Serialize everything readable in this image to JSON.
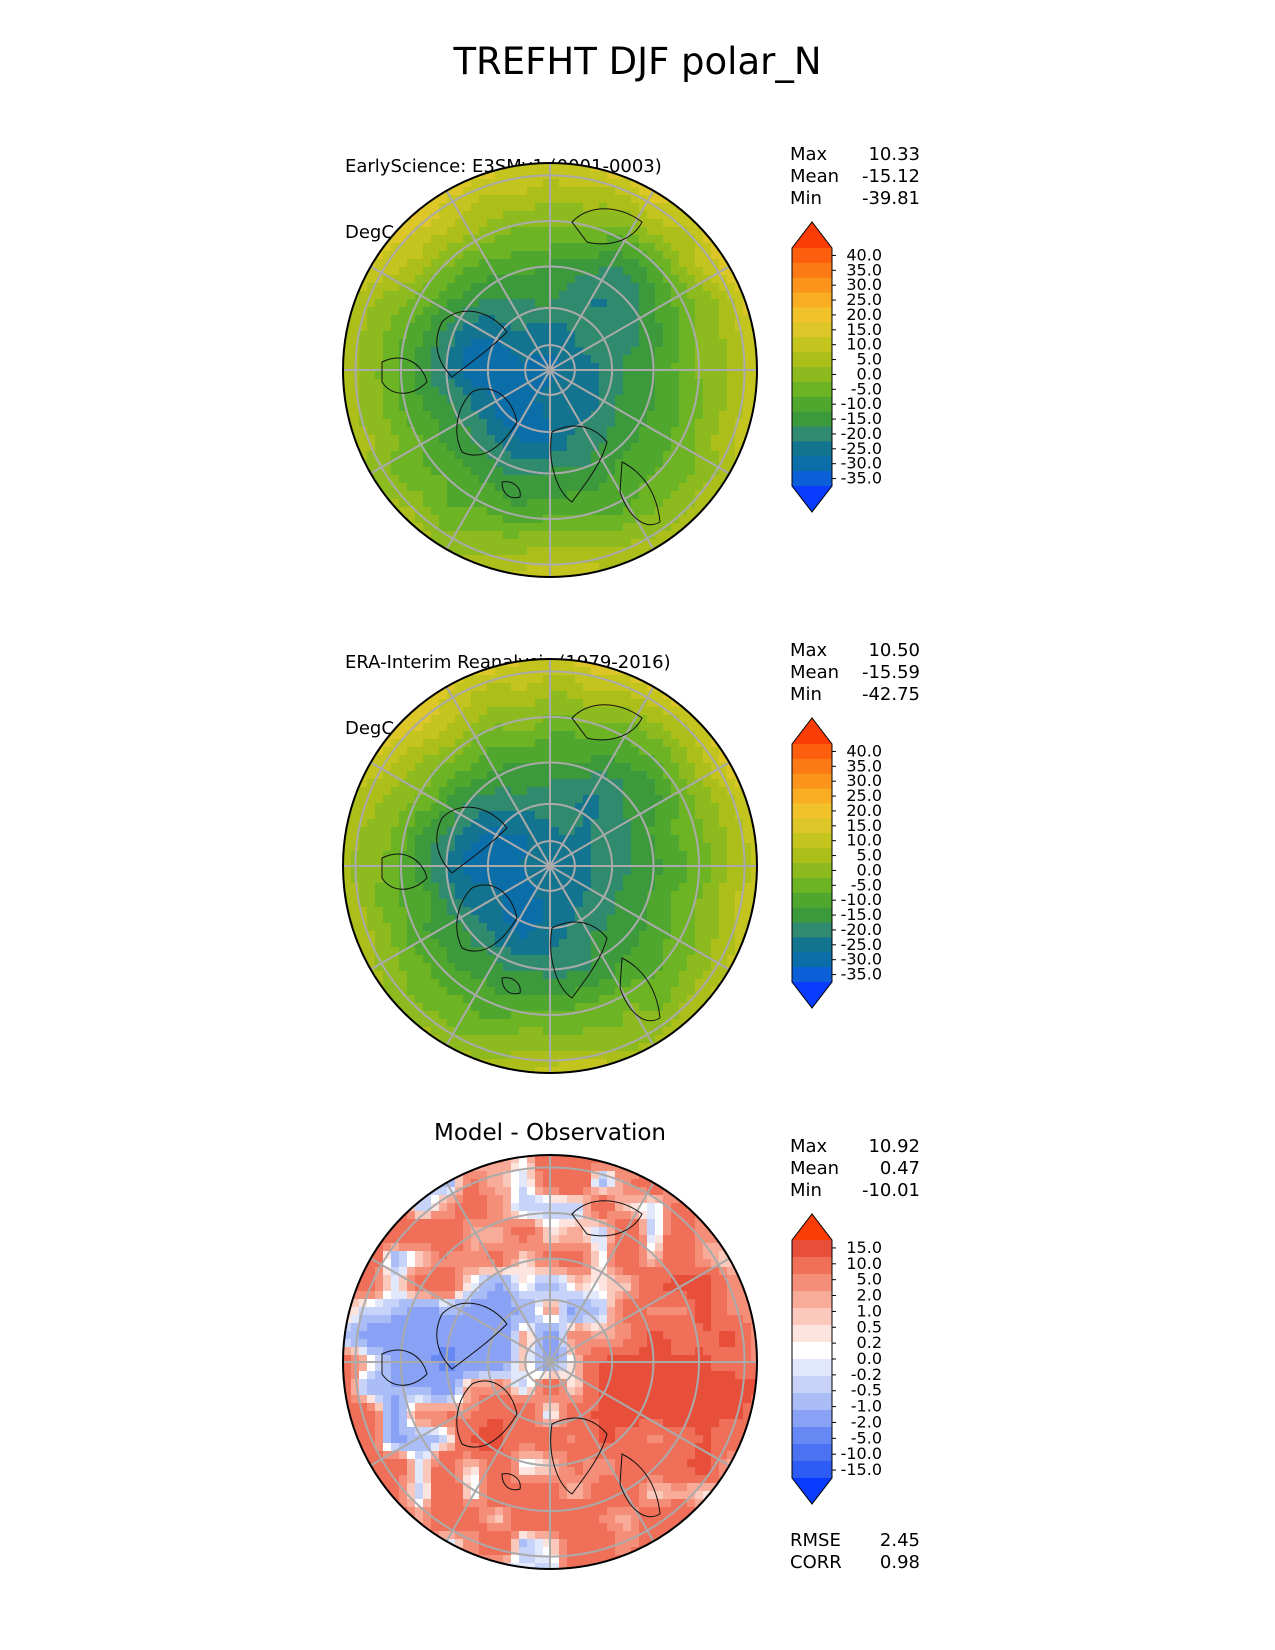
{
  "title": "TREFHT DJF polar_N",
  "palettes": {
    "temperature": [
      "#0a3cff",
      "#0b5fd8",
      "#0b6ea8",
      "#12748f",
      "#2f8a6e",
      "#3c9a3c",
      "#4fa82d",
      "#6db424",
      "#8dbb1f",
      "#abbe1a",
      "#c4c41e",
      "#dcc628",
      "#f2c22a",
      "#f9ad22",
      "#fb941b",
      "#fc7a14",
      "#fd5e0d",
      "#fc3c05"
    ],
    "difference": [
      "#0a3cff",
      "#2d5cf5",
      "#4a72f2",
      "#6688f3",
      "#8aa2f5",
      "#aabdf7",
      "#c7d3f9",
      "#e2e8fb",
      "#ffffff",
      "#fde4df",
      "#fbc8bc",
      "#f9ab99",
      "#f58e78",
      "#ef6f58",
      "#e84f3a",
      "#fc3c05"
    ]
  },
  "panels": [
    {
      "id": "test",
      "label": "EarlyScience: E3SMv1 (0001-0003)",
      "units": "DegC",
      "stats": {
        "max_label": "Max",
        "max": "10.33",
        "mean_label": "Mean",
        "mean": "-15.12",
        "min_label": "Min",
        "min": "-39.81"
      },
      "colorbar_ticks": [
        "40.0",
        "35.0",
        "30.0",
        "25.0",
        "20.0",
        "15.0",
        "10.0",
        "5.0",
        "0.0",
        "-5.0",
        "-10.0",
        "-15.0",
        "-20.0",
        "-25.0",
        "-30.0",
        "-35.0"
      ]
    },
    {
      "id": "reference",
      "label": "ERA-Interim Reanalysis (1979-2016)",
      "units": "DegC",
      "stats": {
        "max_label": "Max",
        "max": "10.50",
        "mean_label": "Mean",
        "mean": "-15.59",
        "min_label": "Min",
        "min": "-42.75"
      },
      "colorbar_ticks": [
        "40.0",
        "35.0",
        "30.0",
        "25.0",
        "20.0",
        "15.0",
        "10.0",
        "5.0",
        "0.0",
        "-5.0",
        "-10.0",
        "-15.0",
        "-20.0",
        "-25.0",
        "-30.0",
        "-35.0"
      ]
    },
    {
      "id": "difference",
      "title": "Model - Observation",
      "stats": {
        "max_label": "Max",
        "max": "10.92",
        "mean_label": "Mean",
        "mean": "0.47",
        "min_label": "Min",
        "min": "-10.01"
      },
      "colorbar_ticks": [
        "15.0",
        "10.0",
        "5.0",
        "2.0",
        "1.0",
        "0.5",
        "0.2",
        "0.0",
        "-0.2",
        "-0.5",
        "-1.0",
        "-2.0",
        "-5.0",
        "-10.0",
        "-15.0"
      ],
      "metrics": {
        "rmse_label": "RMSE",
        "rmse": "2.45",
        "corr_label": "CORR",
        "corr": "0.98"
      }
    }
  ],
  "chart_data": [
    {
      "type": "heatmap",
      "variable": "TREFHT",
      "season": "DJF",
      "region": "polar_N",
      "series": "EarlyScience: E3SMv1 (0001-0003)",
      "units": "DegC",
      "color_levels": [
        -35,
        -30,
        -25,
        -20,
        -15,
        -10,
        -5,
        0,
        5,
        10,
        15,
        20,
        25,
        30,
        35,
        40
      ],
      "max": 10.33,
      "mean": -15.12,
      "min": -39.81
    },
    {
      "type": "heatmap",
      "variable": "TREFHT",
      "season": "DJF",
      "region": "polar_N",
      "series": "ERA-Interim Reanalysis (1979-2016)",
      "units": "DegC",
      "color_levels": [
        -35,
        -30,
        -25,
        -20,
        -15,
        -10,
        -5,
        0,
        5,
        10,
        15,
        20,
        25,
        30,
        35,
        40
      ],
      "max": 10.5,
      "mean": -15.59,
      "min": -42.75
    },
    {
      "type": "heatmap",
      "series": "Model - Observation",
      "color_levels": [
        -15,
        -10,
        -5,
        -2,
        -1,
        -0.5,
        -0.2,
        0,
        0.2,
        0.5,
        1,
        2,
        5,
        10,
        15
      ],
      "max": 10.92,
      "mean": 0.47,
      "min": -10.01,
      "rmse": 2.45,
      "corr": 0.98
    }
  ]
}
